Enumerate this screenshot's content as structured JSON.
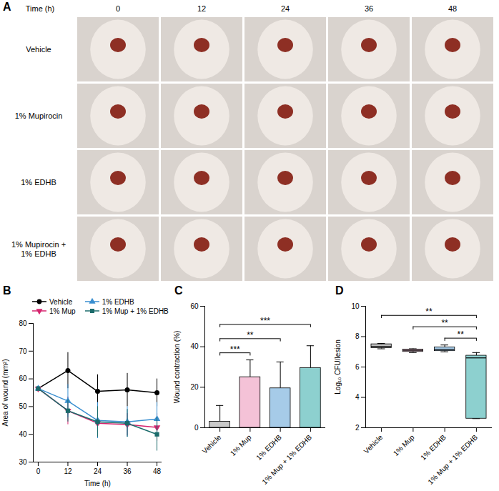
{
  "photo_panel": {
    "panel": "A",
    "header": "Time (h)",
    "columns": [
      0,
      12,
      24,
      36,
      48
    ],
    "rows": [
      "Vehicle",
      "1% Mupirocin",
      "1% EDHB",
      "1% Mupirocin + 1% EDHB"
    ]
  },
  "chart_data": [
    {
      "panel": "B",
      "type": "line",
      "x": [
        0,
        12,
        24,
        36,
        48
      ],
      "xlim": [
        -2,
        50
      ],
      "xticks": [
        0,
        12,
        24,
        36,
        48
      ],
      "ylim": [
        30,
        80
      ],
      "yticks": [
        30,
        40,
        50,
        60,
        70,
        80
      ],
      "x_label": "Time (h)",
      "y_label": "Area of wound (mm²)",
      "legend": "top",
      "series": [
        {
          "name": "Vehicle",
          "color": "#000000",
          "marker": "circle",
          "values": [
            56.5,
            63,
            55.5,
            56,
            55
          ],
          "error": [
            0,
            6.5,
            6,
            6,
            5
          ]
        },
        {
          "name": "1% Mup",
          "color": "#d6246e",
          "marker": "triangle-down",
          "values": [
            56.5,
            48.5,
            44,
            43.5,
            42.5
          ],
          "error": [
            0,
            5,
            5.5,
            4,
            5
          ]
        },
        {
          "name": "1% EDHB",
          "color": "#3a8fd0",
          "marker": "triangle",
          "values": [
            56.5,
            52,
            45,
            44.5,
            45.5
          ],
          "error": [
            0,
            6,
            6.5,
            5.5,
            6
          ]
        },
        {
          "name": "1% Mup + 1% EDHB",
          "color": "#1b6b6b",
          "marker": "square",
          "values": [
            56.5,
            48.5,
            44.5,
            44,
            40
          ],
          "error": [
            0,
            4,
            5.5,
            5,
            6
          ]
        }
      ]
    },
    {
      "panel": "C",
      "type": "bar",
      "categories": [
        "Vehicle",
        "1% Mup",
        "1% EDHB",
        "1% Mup + 1% EDHB"
      ],
      "values": [
        3,
        25,
        19.5,
        29.5
      ],
      "error": [
        8,
        8.5,
        13,
        11
      ],
      "colors": [
        "#c9c9c9",
        "#f4c2d7",
        "#a6cbe8",
        "#8dd0cf"
      ],
      "ylim": [
        0,
        60
      ],
      "yticks": [
        0,
        20,
        40,
        60
      ],
      "y_label": "Wound contraction (%)",
      "annotations": [
        {
          "from": "Vehicle",
          "to": "1% Mup",
          "label": "***",
          "y": 37
        },
        {
          "from": "Vehicle",
          "to": "1% EDHB",
          "label": "**",
          "y": 44
        },
        {
          "from": "Vehicle",
          "to": "1% Mup + 1% EDHB",
          "label": "***",
          "y": 51
        }
      ]
    },
    {
      "panel": "D",
      "type": "box",
      "categories": [
        "Vehicle",
        "1% Mup",
        "1% EDHB",
        "1% Mup + 1% EDHB"
      ],
      "boxes": [
        {
          "min": 7.2,
          "q1": 7.25,
          "median": 7.35,
          "q3": 7.5,
          "max": 7.55
        },
        {
          "min": 6.95,
          "q1": 7.0,
          "median": 7.1,
          "q3": 7.15,
          "max": 7.2
        },
        {
          "min": 7.0,
          "q1": 7.05,
          "median": 7.15,
          "q3": 7.3,
          "max": 7.45
        },
        {
          "min": 2.6,
          "q1": 2.6,
          "median": 6.6,
          "q3": 6.75,
          "max": 6.95
        }
      ],
      "colors": [
        "#bfbfbf",
        "#f4c2d7",
        "#a6cbe8",
        "#8dd0cf"
      ],
      "ylim": [
        2,
        10
      ],
      "yticks": [
        2,
        4,
        6,
        8,
        10
      ],
      "y_label": "Log₁₀ CFU/lesion",
      "annotations": [
        {
          "from": "Vehicle",
          "to": "1% Mup + 1% EDHB",
          "label": "**",
          "y": 9.4
        },
        {
          "from": "1% Mup",
          "to": "1% Mup + 1% EDHB",
          "label": "**",
          "y": 8.65
        },
        {
          "from": "1% EDHB",
          "to": "1% Mup + 1% EDHB",
          "label": "**",
          "y": 7.9
        }
      ]
    }
  ]
}
